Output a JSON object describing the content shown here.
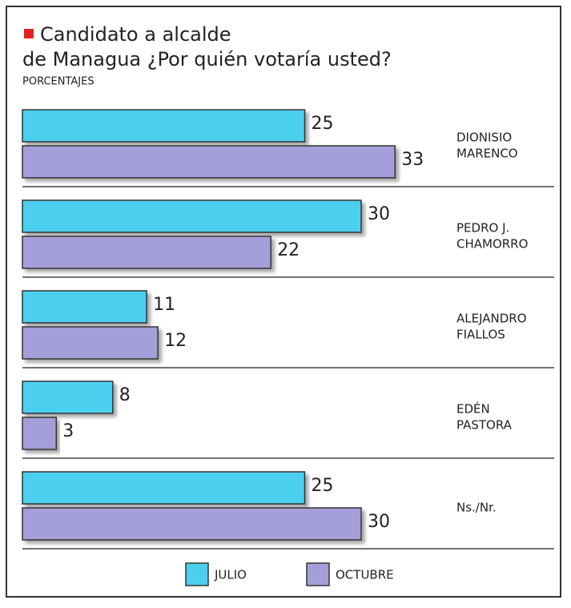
{
  "chart_data": {
    "type": "bar",
    "title": [
      "Candidato a alcalde",
      "de Managua ¿Por quién votaría usted?"
    ],
    "subtitle": "PORCENTAJES",
    "categories": [
      [
        "DIONISIO",
        "MARENCO"
      ],
      [
        "PEDRO J.",
        "CHAMORRO"
      ],
      [
        "ALEJANDRO",
        "FIALLOS"
      ],
      [
        "EDÉN",
        "PASTORA"
      ],
      [
        "Ns./Nr."
      ]
    ],
    "series": [
      {
        "name": "JULIO",
        "color": "#4ccfef",
        "values": [
          25,
          30,
          11,
          8,
          25
        ]
      },
      {
        "name": "OCTUBRE",
        "color": "#a49fd8",
        "values": [
          33,
          22,
          12,
          3,
          30
        ]
      }
    ]
  }
}
